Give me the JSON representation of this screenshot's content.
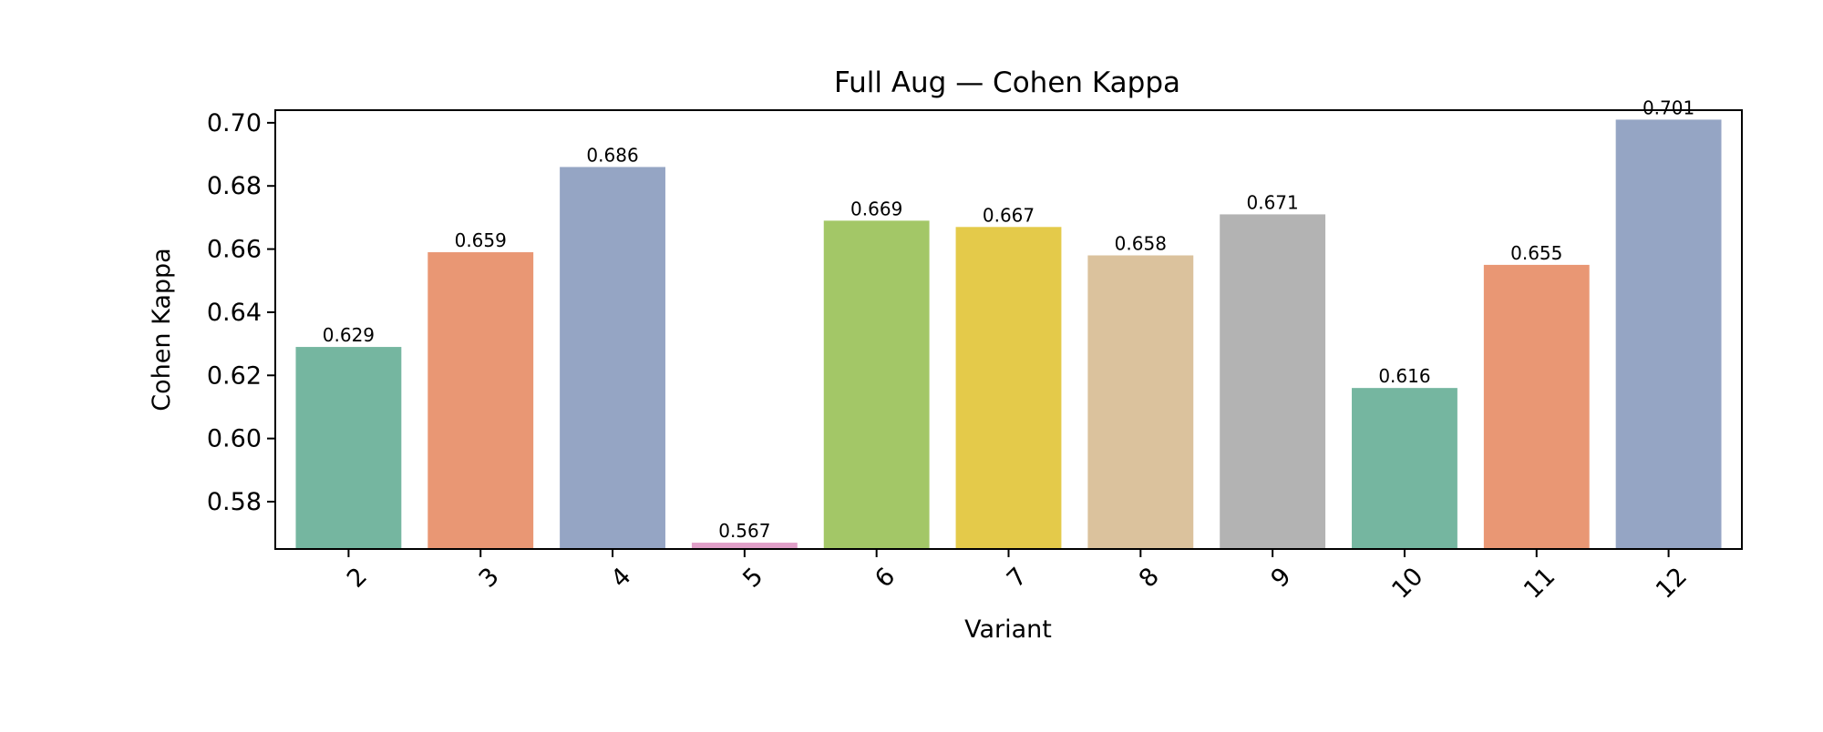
{
  "chart_data": {
    "type": "bar",
    "title": "Full Aug — Cohen Kappa",
    "xlabel": "Variant",
    "ylabel": "Cohen Kappa",
    "categories": [
      "2",
      "3",
      "4",
      "5",
      "6",
      "7",
      "8",
      "9",
      "10",
      "11",
      "12"
    ],
    "values": [
      0.629,
      0.659,
      0.686,
      0.567,
      0.669,
      0.667,
      0.658,
      0.671,
      0.616,
      0.655,
      0.701
    ],
    "value_labels": [
      "0.629",
      "0.659",
      "0.686",
      "0.567",
      "0.669",
      "0.667",
      "0.658",
      "0.671",
      "0.616",
      "0.655",
      "0.701"
    ],
    "colors": [
      "#75b6a0",
      "#e99774",
      "#95a5c4",
      "#e09fc8",
      "#a3c767",
      "#e4ca4a",
      "#dbc29d",
      "#b3b3b3",
      "#75b6a0",
      "#e99774",
      "#95a5c4"
    ],
    "ylim": [
      0.565,
      0.704
    ],
    "yticks": [
      0.58,
      0.6,
      0.62,
      0.64,
      0.66,
      0.68,
      0.7
    ],
    "ytick_labels": [
      "0.58",
      "0.60",
      "0.62",
      "0.64",
      "0.66",
      "0.68",
      "0.70"
    ],
    "xtick_rotation": 45,
    "grid": false,
    "legend": "none"
  }
}
